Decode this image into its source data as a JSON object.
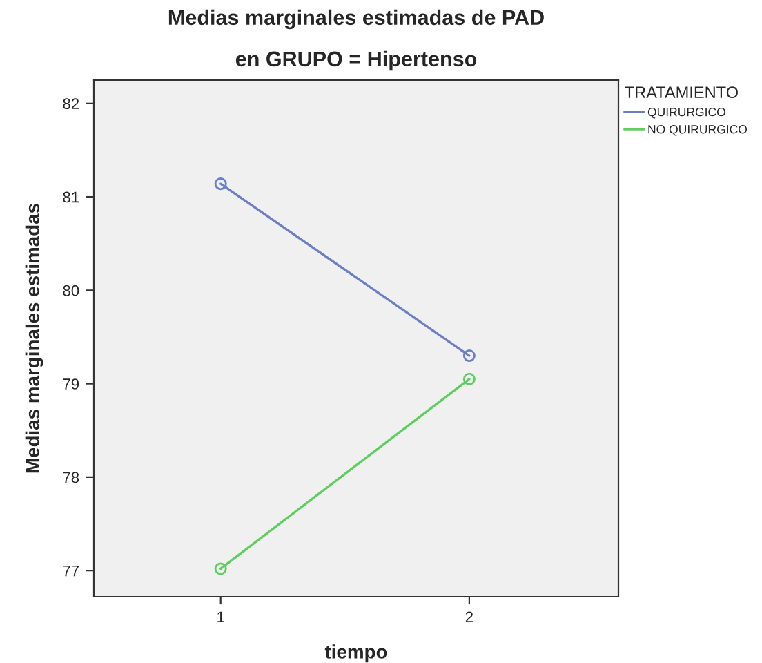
{
  "chart_data": {
    "type": "line",
    "title": "Medias marginales estimadas de PAD",
    "subtitle": "en GRUPO = Hipertenso",
    "xlabel": "tiempo",
    "ylabel": "Medias marginales estimadas",
    "legend_title": "TRATAMIENTO",
    "categories": [
      "1",
      "2"
    ],
    "series": [
      {
        "name": "QUIRURGICO",
        "color": "#6b7fc4",
        "values": [
          81.14,
          79.3
        ]
      },
      {
        "name": "NO QUIRURGICO",
        "color": "#5ccf5c",
        "values": [
          77.02,
          79.05
        ]
      }
    ],
    "ylim": [
      76.72,
      82.25
    ],
    "yticks": [
      77,
      78,
      79,
      80,
      81,
      82
    ],
    "marker": "circle",
    "legend": "top right",
    "grid": false
  }
}
